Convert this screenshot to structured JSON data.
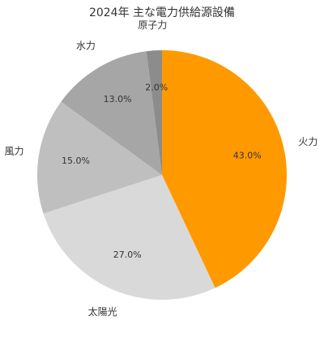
{
  "chart_data": {
    "type": "pie",
    "title": "2024年 主な電力供給源設備",
    "categories": [
      "火力",
      "太陽光",
      "風力",
      "水力",
      "原子力"
    ],
    "values": [
      43,
      27,
      15,
      13,
      2
    ],
    "value_labels": [
      "43.0%",
      "27.0%",
      "15.0%",
      "13.0%",
      "2.0%"
    ],
    "colors": [
      "#ff9900",
      "#d9d9d9",
      "#bfbfbf",
      "#a6a6a6",
      "#8c8c8c"
    ]
  }
}
